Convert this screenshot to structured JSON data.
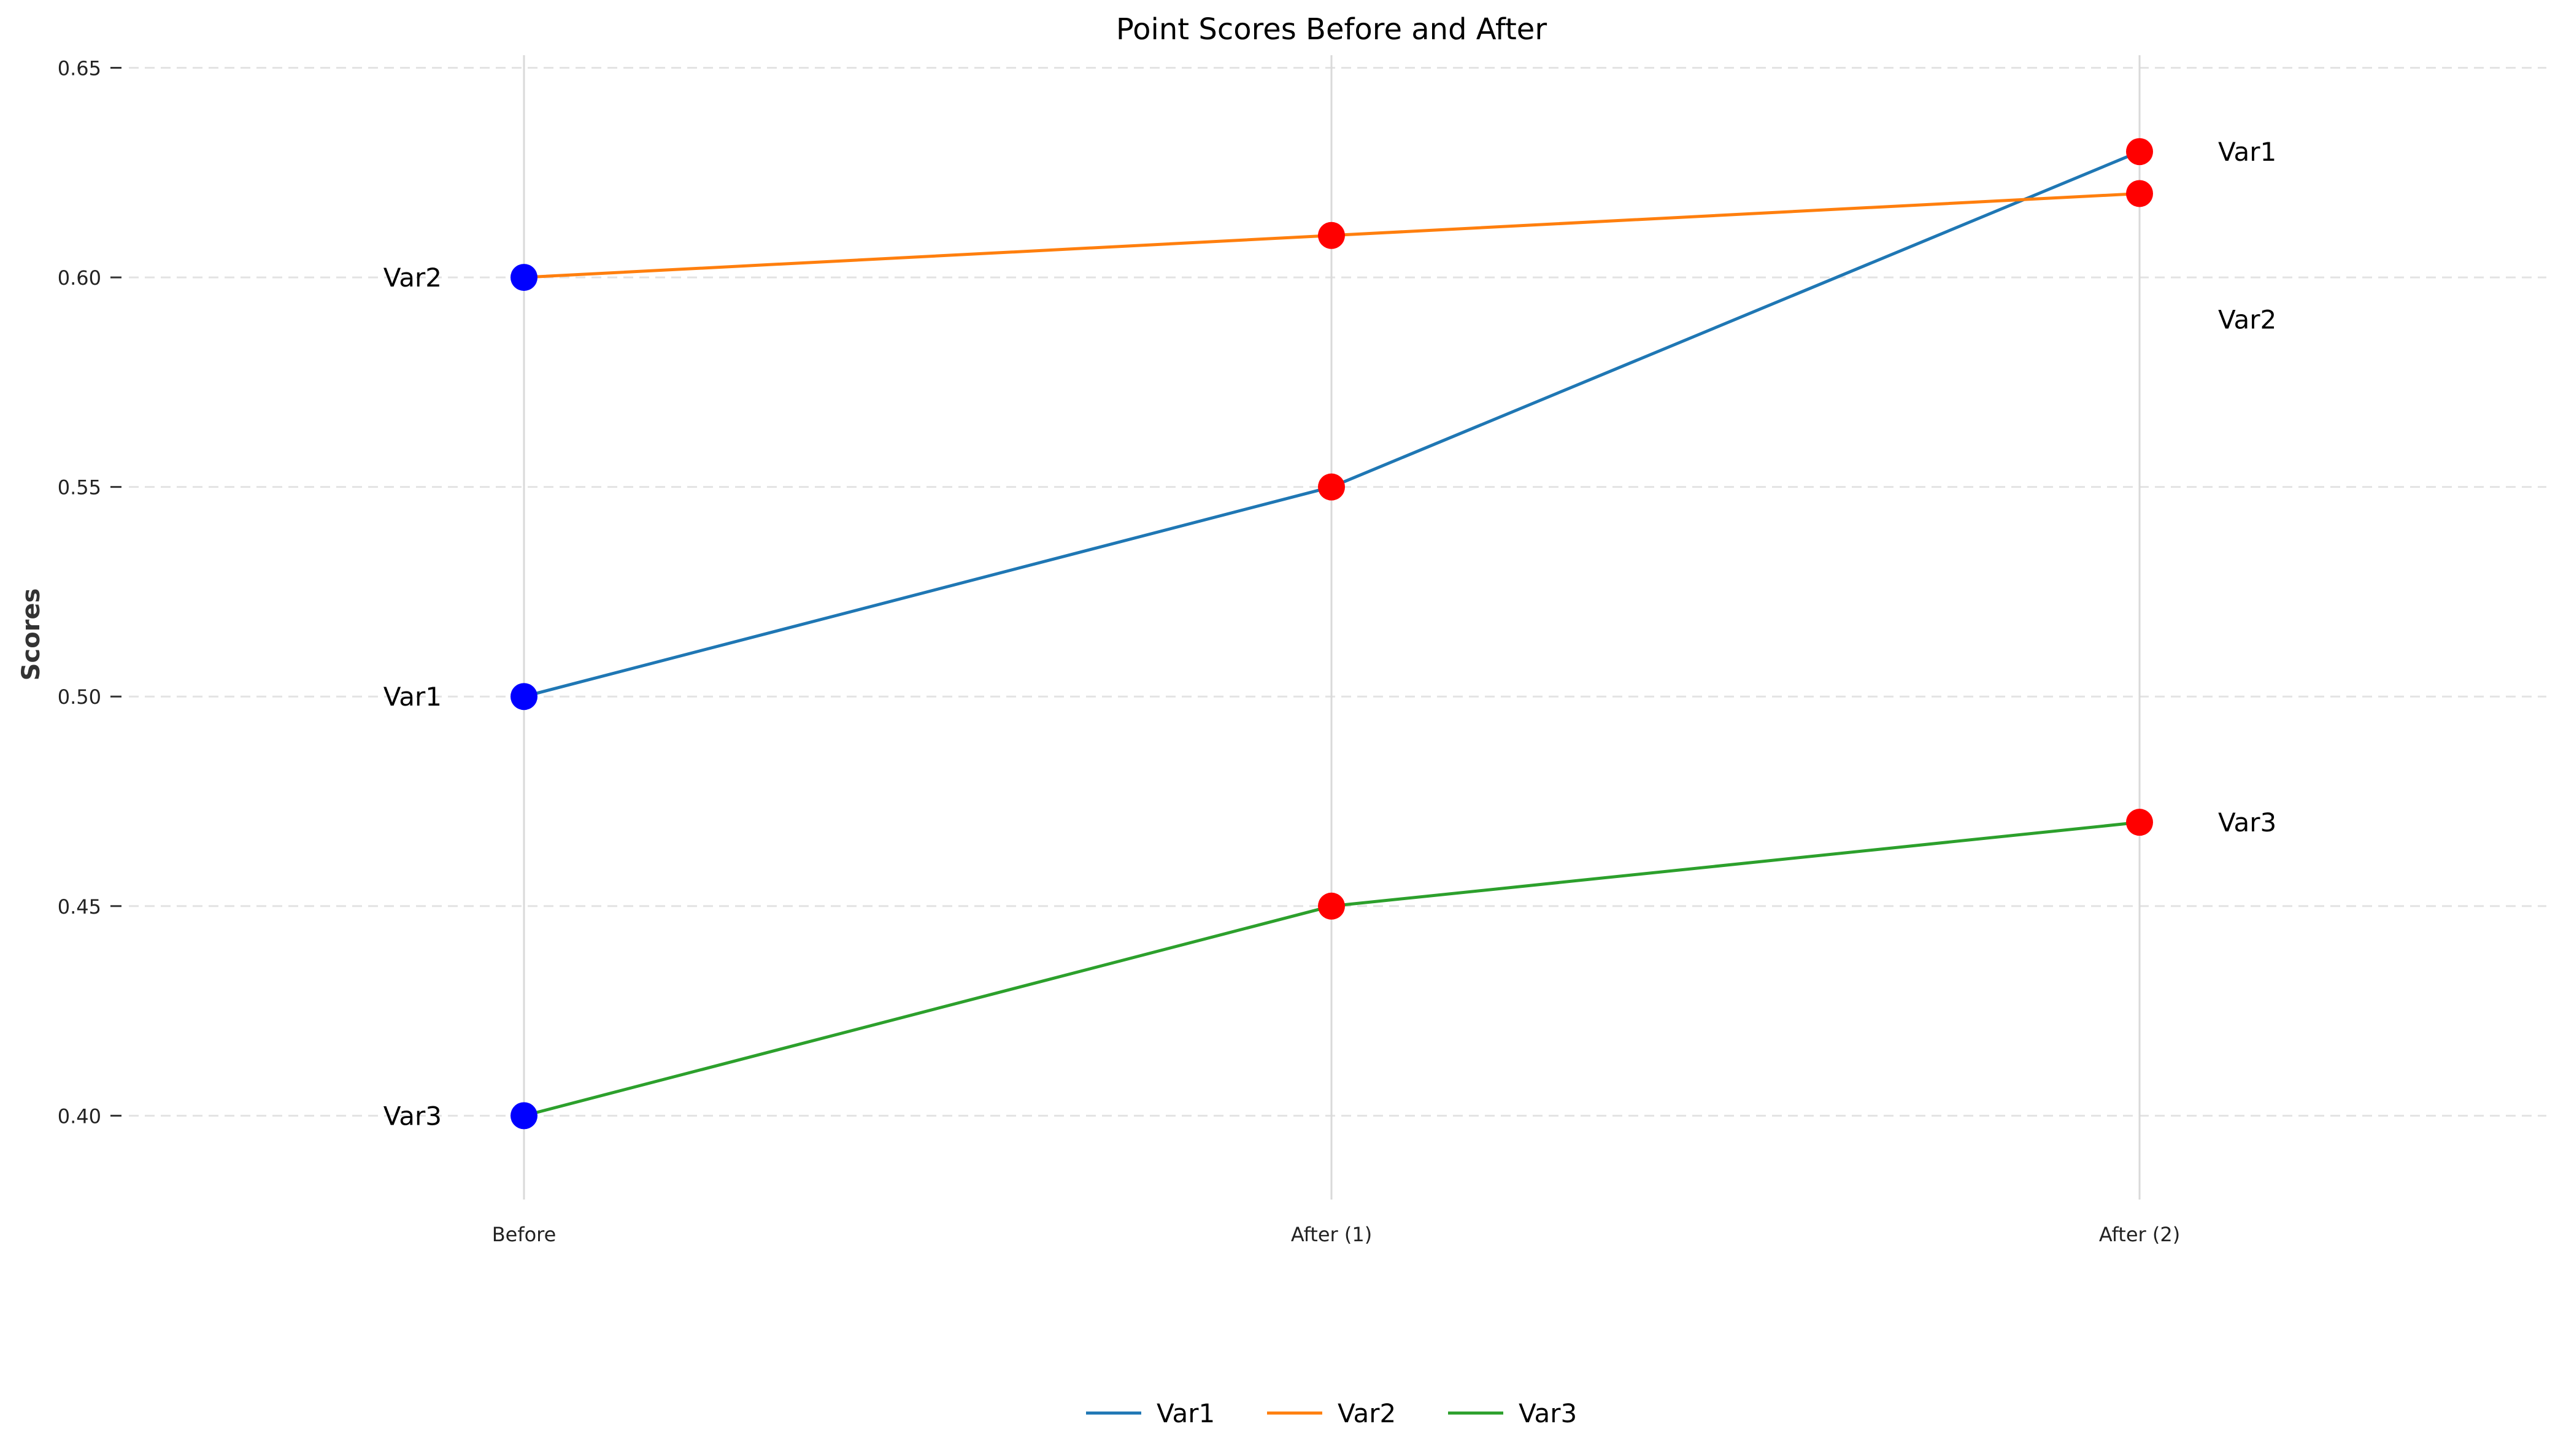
{
  "chart_data": {
    "type": "line",
    "title": "Point Scores Before and After",
    "xlabel": "",
    "ylabel": "Scores",
    "categories": [
      "Before",
      "After (1)",
      "After (2)"
    ],
    "ylim": [
      0.38,
      0.653
    ],
    "yticks": [
      0.4,
      0.45,
      0.5,
      0.55,
      0.6,
      0.65
    ],
    "ytick_labels": [
      "0.40",
      "0.45",
      "0.50",
      "0.55",
      "0.60",
      "0.65"
    ],
    "grid": {
      "horizontal": true,
      "horizontal_style": "dashed",
      "vertical_at_categories": true
    },
    "legend": {
      "placement": "bottom-center",
      "columns": 3
    },
    "before_marker_color": "#0000ff",
    "after_marker_color": "#ff0000",
    "series": [
      {
        "name": "Var1",
        "color": "#1f77b4",
        "values": [
          0.5,
          0.55,
          0.63
        ]
      },
      {
        "name": "Var2",
        "color": "#ff7f0e",
        "values": [
          0.6,
          0.61,
          0.62
        ]
      },
      {
        "name": "Var3",
        "color": "#2ca02c",
        "values": [
          0.4,
          0.45,
          0.47
        ]
      }
    ],
    "annotations": {
      "left": [
        {
          "text": "Var2",
          "y": 0.6
        },
        {
          "text": "Var1",
          "y": 0.5
        },
        {
          "text": "Var3",
          "y": 0.4
        }
      ],
      "right": [
        {
          "text": "Var1",
          "y": 0.63
        },
        {
          "text": "Var2",
          "y": 0.59
        },
        {
          "text": "Var3",
          "y": 0.47
        }
      ]
    }
  }
}
